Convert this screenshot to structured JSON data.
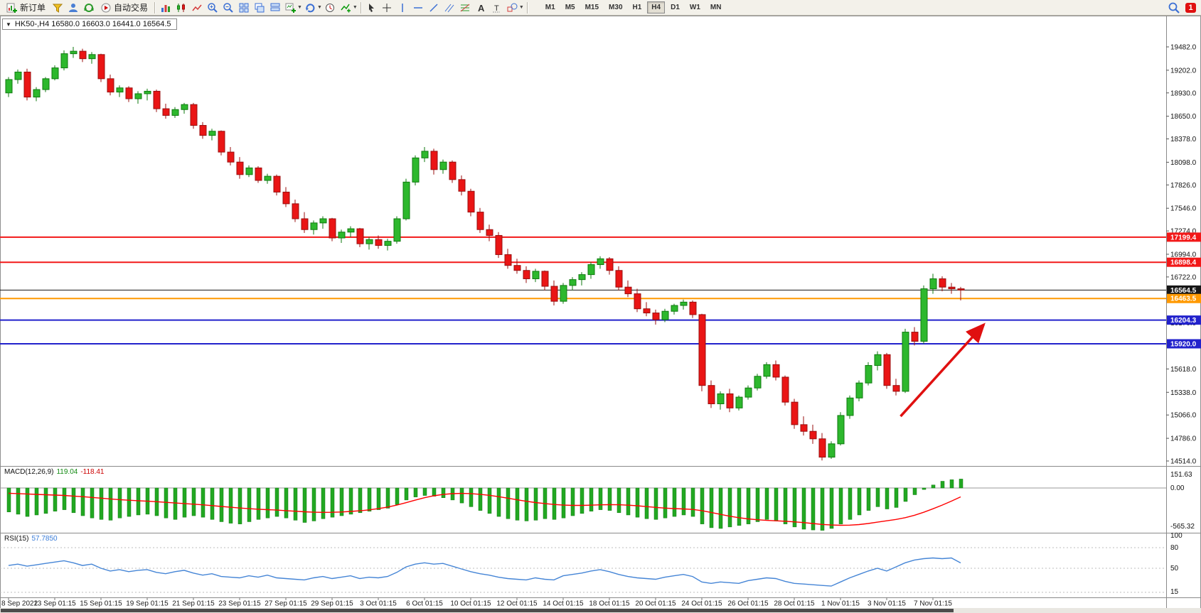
{
  "toolbar": {
    "new_order": "新订单",
    "auto_trading": "自动交易",
    "timeframes": [
      "M1",
      "M5",
      "M15",
      "M30",
      "H1",
      "H4",
      "D1",
      "W1",
      "MN"
    ],
    "active_timeframe": "H4",
    "notification_count": "1"
  },
  "chart": {
    "info_line": "HK50-,H4 16580.0 16603.0 16441.0 16564.5"
  },
  "indicators": {
    "macd": {
      "name": "MACD(12,26,9)",
      "main_value": "119.04",
      "signal_value": "-118.41",
      "axis_labels": [
        "151.63",
        "0.00",
        "-565.32"
      ]
    },
    "rsi": {
      "name": "RSI(15)",
      "value": "57.7850",
      "axis_labels": [
        "100",
        "80",
        "50",
        "15"
      ]
    }
  },
  "chart_data": {
    "type": "candlestick",
    "symbol": "HK50-",
    "timeframe": "H4",
    "ohlc_info": {
      "open": "16580.0",
      "high": "16603.0",
      "low": "16441.0",
      "close": "16564.5"
    },
    "price_axis": {
      "min": 14514.0,
      "max": 19482.0,
      "ticks": [
        19482.0,
        19202.0,
        18930.0,
        18650.0,
        18378.0,
        18098.0,
        17826.0,
        17546.0,
        17274.0,
        16994.0,
        16722.0,
        16170.0,
        15618.0,
        15338.0,
        15066.0,
        14786.0,
        14514.0
      ]
    },
    "horizontal_lines": [
      {
        "price": 17199.4,
        "color": "#f21818",
        "width": 2
      },
      {
        "price": 16898.4,
        "color": "#f21818",
        "width": 2
      },
      {
        "price": 16564.5,
        "color": "#161616",
        "width": 1
      },
      {
        "price": 16463.5,
        "color": "#ff9900",
        "width": 2
      },
      {
        "price": 16204.3,
        "color": "#2222cc",
        "width": 2
      },
      {
        "price": 15920.0,
        "color": "#2222cc",
        "width": 2
      }
    ],
    "current_price": 16564.5,
    "time_labels": [
      "8 Sep 2022",
      "13 Sep 01:15",
      "15 Sep 01:15",
      "19 Sep 01:15",
      "21 Sep 01:15",
      "23 Sep 01:15",
      "27 Sep 01:15",
      "29 Sep 01:15",
      "3 Oct 01:15",
      "6 Oct 01:15",
      "10 Oct 01:15",
      "12 Oct 01:15",
      "14 Oct 01:15",
      "18 Oct 01:15",
      "20 Oct 01:15",
      "24 Oct 01:15",
      "26 Oct 01:15",
      "28 Oct 01:15",
      "1 Nov 01:15",
      "3 Nov 01:15",
      "7 Nov 01:15"
    ],
    "candles": [
      [
        18930,
        19120,
        18880,
        19090
      ],
      [
        19090,
        19210,
        19040,
        19180
      ],
      [
        19180,
        19220,
        18840,
        18880
      ],
      [
        18880,
        19000,
        18830,
        18970
      ],
      [
        18970,
        19120,
        18940,
        19100
      ],
      [
        19100,
        19260,
        19080,
        19230
      ],
      [
        19230,
        19440,
        19200,
        19400
      ],
      [
        19400,
        19482,
        19350,
        19430
      ],
      [
        19430,
        19460,
        19300,
        19340
      ],
      [
        19340,
        19420,
        19280,
        19390
      ],
      [
        19390,
        19400,
        19060,
        19100
      ],
      [
        19100,
        19150,
        18900,
        18940
      ],
      [
        18940,
        19020,
        18880,
        18990
      ],
      [
        18990,
        19010,
        18820,
        18860
      ],
      [
        18860,
        18950,
        18800,
        18920
      ],
      [
        18920,
        18980,
        18840,
        18950
      ],
      [
        18950,
        18970,
        18700,
        18740
      ],
      [
        18740,
        18800,
        18620,
        18660
      ],
      [
        18660,
        18760,
        18630,
        18730
      ],
      [
        18730,
        18810,
        18680,
        18790
      ],
      [
        18790,
        18810,
        18500,
        18540
      ],
      [
        18540,
        18580,
        18380,
        18420
      ],
      [
        18420,
        18500,
        18360,
        18470
      ],
      [
        18470,
        18480,
        18180,
        18220
      ],
      [
        18220,
        18280,
        18060,
        18100
      ],
      [
        18100,
        18160,
        17900,
        17950
      ],
      [
        17950,
        18060,
        17920,
        18030
      ],
      [
        18030,
        18050,
        17850,
        17880
      ],
      [
        17880,
        17960,
        17840,
        17930
      ],
      [
        17930,
        17950,
        17700,
        17740
      ],
      [
        17740,
        17800,
        17560,
        17600
      ],
      [
        17600,
        17650,
        17380,
        17420
      ],
      [
        17420,
        17500,
        17250,
        17290
      ],
      [
        17290,
        17400,
        17230,
        17370
      ],
      [
        17370,
        17450,
        17300,
        17420
      ],
      [
        17420,
        17430,
        17150,
        17190
      ],
      [
        17190,
        17290,
        17130,
        17260
      ],
      [
        17260,
        17330,
        17200,
        17300
      ],
      [
        17300,
        17310,
        17080,
        17120
      ],
      [
        17120,
        17200,
        17050,
        17170
      ],
      [
        17170,
        17220,
        17060,
        17100
      ],
      [
        17100,
        17180,
        17040,
        17150
      ],
      [
        17150,
        17450,
        17120,
        17420
      ],
      [
        17420,
        17900,
        17400,
        17860
      ],
      [
        17860,
        18180,
        17820,
        18150
      ],
      [
        18150,
        18280,
        18100,
        18230
      ],
      [
        18230,
        18260,
        17950,
        18010
      ],
      [
        18010,
        18130,
        17960,
        18100
      ],
      [
        18100,
        18120,
        17850,
        17890
      ],
      [
        17890,
        17940,
        17700,
        17750
      ],
      [
        17750,
        17780,
        17450,
        17500
      ],
      [
        17500,
        17550,
        17250,
        17290
      ],
      [
        17290,
        17350,
        17150,
        17220
      ],
      [
        17220,
        17260,
        16950,
        16990
      ],
      [
        16990,
        17060,
        16820,
        16860
      ],
      [
        16860,
        16940,
        16760,
        16800
      ],
      [
        16800,
        16850,
        16650,
        16700
      ],
      [
        16700,
        16820,
        16660,
        16790
      ],
      [
        16790,
        16800,
        16560,
        16610
      ],
      [
        16610,
        16680,
        16380,
        16430
      ],
      [
        16430,
        16650,
        16400,
        16620
      ],
      [
        16620,
        16720,
        16560,
        16690
      ],
      [
        16690,
        16780,
        16620,
        16750
      ],
      [
        16750,
        16900,
        16700,
        16870
      ],
      [
        16870,
        16970,
        16820,
        16940
      ],
      [
        16940,
        16960,
        16750,
        16800
      ],
      [
        16800,
        16850,
        16560,
        16600
      ],
      [
        16600,
        16680,
        16480,
        16520
      ],
      [
        16520,
        16580,
        16300,
        16340
      ],
      [
        16340,
        16420,
        16250,
        16290
      ],
      [
        16290,
        16330,
        16150,
        16210
      ],
      [
        16210,
        16340,
        16180,
        16310
      ],
      [
        16310,
        16400,
        16270,
        16380
      ],
      [
        16380,
        16450,
        16330,
        16420
      ],
      [
        16420,
        16440,
        16230,
        16270
      ],
      [
        16270,
        16280,
        15350,
        15420
      ],
      [
        15420,
        15480,
        15150,
        15200
      ],
      [
        15200,
        15350,
        15130,
        15320
      ],
      [
        15320,
        15380,
        15100,
        15150
      ],
      [
        15150,
        15300,
        15120,
        15280
      ],
      [
        15280,
        15420,
        15250,
        15390
      ],
      [
        15390,
        15560,
        15360,
        15530
      ],
      [
        15530,
        15700,
        15500,
        15670
      ],
      [
        15670,
        15720,
        15480,
        15520
      ],
      [
        15520,
        15540,
        15180,
        15220
      ],
      [
        15220,
        15260,
        14900,
        14950
      ],
      [
        14950,
        15050,
        14820,
        14870
      ],
      [
        14870,
        14950,
        14720,
        14780
      ],
      [
        14780,
        14850,
        14520,
        14560
      ],
      [
        14560,
        14750,
        14540,
        14720
      ],
      [
        14720,
        15100,
        14700,
        15060
      ],
      [
        15060,
        15300,
        15020,
        15270
      ],
      [
        15270,
        15480,
        15230,
        15450
      ],
      [
        15450,
        15700,
        15420,
        15660
      ],
      [
        15660,
        15830,
        15600,
        15790
      ],
      [
        15790,
        15810,
        15380,
        15420
      ],
      [
        15420,
        15500,
        15300,
        15350
      ],
      [
        15350,
        16100,
        15330,
        16060
      ],
      [
        16060,
        16120,
        15900,
        15950
      ],
      [
        15950,
        16620,
        15920,
        16580
      ],
      [
        16580,
        16760,
        16520,
        16700
      ],
      [
        16700,
        16730,
        16550,
        16600
      ],
      [
        16600,
        16650,
        16520,
        16580
      ],
      [
        16580,
        16603,
        16441,
        16564.5
      ]
    ],
    "macd_hist": [
      -320,
      -350,
      -380,
      -360,
      -340,
      -310,
      -290,
      -330,
      -370,
      -400,
      -420,
      -430,
      -400,
      -380,
      -360,
      -350,
      -370,
      -400,
      -420,
      -390,
      -370,
      -390,
      -420,
      -450,
      -470,
      -480,
      -450,
      -420,
      -400,
      -380,
      -400,
      -430,
      -460,
      -440,
      -410,
      -390,
      -370,
      -350,
      -330,
      -310,
      -290,
      -270,
      -220,
      -160,
      -120,
      -100,
      -110,
      -130,
      -160,
      -200,
      -250,
      -300,
      -340,
      -380,
      -410,
      -430,
      -440,
      -430,
      -410,
      -420,
      -400,
      -370,
      -340,
      -310,
      -290,
      -300,
      -330,
      -360,
      -390,
      -410,
      -420,
      -400,
      -380,
      -360,
      -380,
      -480,
      -530,
      -540,
      -520,
      -500,
      -480,
      -450,
      -420,
      -440,
      -480,
      -520,
      -550,
      -560,
      -565,
      -540,
      -480,
      -420,
      -360,
      -300,
      -250,
      -280,
      -260,
      -180,
      -90,
      -20,
      40,
      90,
      110,
      119.04
    ],
    "macd_signal": [
      -70,
      -75,
      -80,
      -85,
      -90,
      -95,
      -100,
      -108,
      -116,
      -126,
      -136,
      -146,
      -155,
      -163,
      -170,
      -176,
      -183,
      -191,
      -200,
      -208,
      -216,
      -225,
      -235,
      -246,
      -257,
      -267,
      -276,
      -283,
      -289,
      -295,
      -302,
      -310,
      -318,
      -323,
      -325,
      -324,
      -320,
      -313,
      -304,
      -292,
      -276,
      -255,
      -228,
      -196,
      -162,
      -130,
      -104,
      -86,
      -76,
      -72,
      -75,
      -84,
      -98,
      -116,
      -136,
      -157,
      -177,
      -194,
      -208,
      -220,
      -228,
      -232,
      -232,
      -229,
      -225,
      -223,
      -224,
      -229,
      -237,
      -248,
      -259,
      -268,
      -275,
      -280,
      -286,
      -302,
      -326,
      -352,
      -376,
      -396,
      -412,
      -424,
      -432,
      -438,
      -444,
      -452,
      -462,
      -474,
      -486,
      -494,
      -498,
      -496,
      -488,
      -474,
      -456,
      -438,
      -420,
      -396,
      -364,
      -324,
      -278,
      -228,
      -175,
      -118.41
    ],
    "rsi_series": [
      54,
      56,
      53,
      55,
      57,
      59,
      61,
      58,
      54,
      56,
      50,
      46,
      48,
      45,
      47,
      48,
      44,
      42,
      45,
      47,
      43,
      40,
      42,
      38,
      37,
      36,
      39,
      37,
      40,
      36,
      35,
      34,
      33,
      36,
      38,
      35,
      37,
      39,
      35,
      37,
      36,
      38,
      44,
      52,
      56,
      58,
      56,
      57,
      53,
      49,
      45,
      42,
      40,
      37,
      35,
      34,
      33,
      36,
      34,
      33,
      39,
      41,
      43,
      46,
      48,
      45,
      41,
      38,
      36,
      35,
      34,
      37,
      39,
      41,
      38,
      30,
      28,
      30,
      29,
      28,
      32,
      34,
      36,
      35,
      31,
      28,
      27,
      26,
      25,
      24,
      30,
      36,
      41,
      46,
      50,
      46,
      52,
      58,
      62,
      64,
      65,
      64,
      65,
      57.785
    ],
    "annotation_arrow": {
      "from_index": 96.5,
      "from_price": 15050,
      "to_index": 105.5,
      "to_price": 16150,
      "color": "#e01010"
    }
  }
}
